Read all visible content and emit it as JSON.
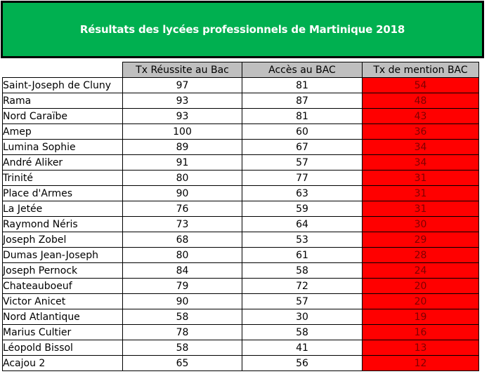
{
  "title": "Résultats des lycées professionnels de Martinique 2018",
  "colors": {
    "banner": "#00b050",
    "header_fill": "#bfbfbf",
    "mention_fill": "#ff0000"
  },
  "chart_data": {
    "type": "table",
    "title": "Résultats des lycées professionnels de Martinique 2018",
    "columns": [
      "",
      "Tx Réussite au Bac",
      "Accès au BAC",
      "Tx de mention BAC"
    ],
    "rows": [
      {
        "name": "Saint-Joseph de Cluny",
        "reussite": 97,
        "acces": 81,
        "mention": 54
      },
      {
        "name": "Rama",
        "reussite": 93,
        "acces": 87,
        "mention": 48
      },
      {
        "name": "Nord Caraïbe",
        "reussite": 93,
        "acces": 81,
        "mention": 43
      },
      {
        "name": "Amep",
        "reussite": 100,
        "acces": 60,
        "mention": 36
      },
      {
        "name": "Lumina Sophie",
        "reussite": 89,
        "acces": 67,
        "mention": 34
      },
      {
        "name": "André Aliker",
        "reussite": 91,
        "acces": 57,
        "mention": 34
      },
      {
        "name": "Trinité",
        "reussite": 80,
        "acces": 77,
        "mention": 31
      },
      {
        "name": "Place d'Armes",
        "reussite": 90,
        "acces": 63,
        "mention": 31
      },
      {
        "name": "La Jetée",
        "reussite": 76,
        "acces": 59,
        "mention": 31
      },
      {
        "name": "Raymond Néris",
        "reussite": 73,
        "acces": 64,
        "mention": 30
      },
      {
        "name": "Joseph Zobel",
        "reussite": 68,
        "acces": 53,
        "mention": 29
      },
      {
        "name": "Dumas Jean-Joseph",
        "reussite": 80,
        "acces": 61,
        "mention": 28
      },
      {
        "name": "Joseph Pernock",
        "reussite": 84,
        "acces": 58,
        "mention": 24
      },
      {
        "name": "Chateauboeuf",
        "reussite": 79,
        "acces": 72,
        "mention": 20
      },
      {
        "name": "Victor Anicet",
        "reussite": 90,
        "acces": 57,
        "mention": 20
      },
      {
        "name": "Nord Atlantique",
        "reussite": 58,
        "acces": 30,
        "mention": 19
      },
      {
        "name": "Marius Cultier",
        "reussite": 78,
        "acces": 58,
        "mention": 16
      },
      {
        "name": "Léopold Bissol",
        "reussite": 58,
        "acces": 41,
        "mention": 13
      },
      {
        "name": "Acajou 2",
        "reussite": 65,
        "acces": 56,
        "mention": 12
      }
    ]
  }
}
